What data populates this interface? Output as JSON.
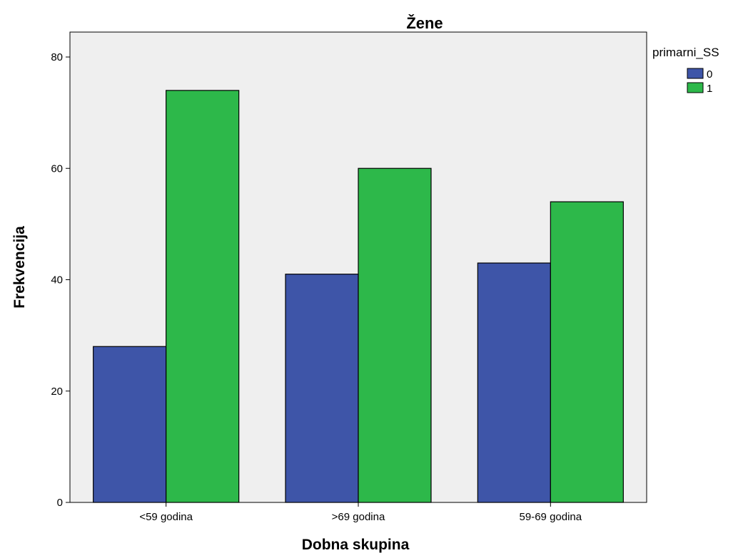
{
  "chart_data": {
    "type": "bar",
    "title": "Žene",
    "xlabel": "Dobna skupina",
    "ylabel": "Frekvencija",
    "categories": [
      "<59 godina",
      ">69 godina",
      "59-69 godina"
    ],
    "series": [
      {
        "name": "0",
        "values": [
          28,
          41,
          43
        ],
        "color": "#3e55a8"
      },
      {
        "name": "1",
        "values": [
          74,
          60,
          54
        ],
        "color": "#2db84a"
      }
    ],
    "ylim": [
      0,
      80
    ],
    "yticks": [
      0,
      20,
      40,
      60,
      80
    ],
    "legend": {
      "title": "primarni_SS",
      "position": "top-right outside"
    },
    "plot_background": "#efefef",
    "grid": false
  }
}
